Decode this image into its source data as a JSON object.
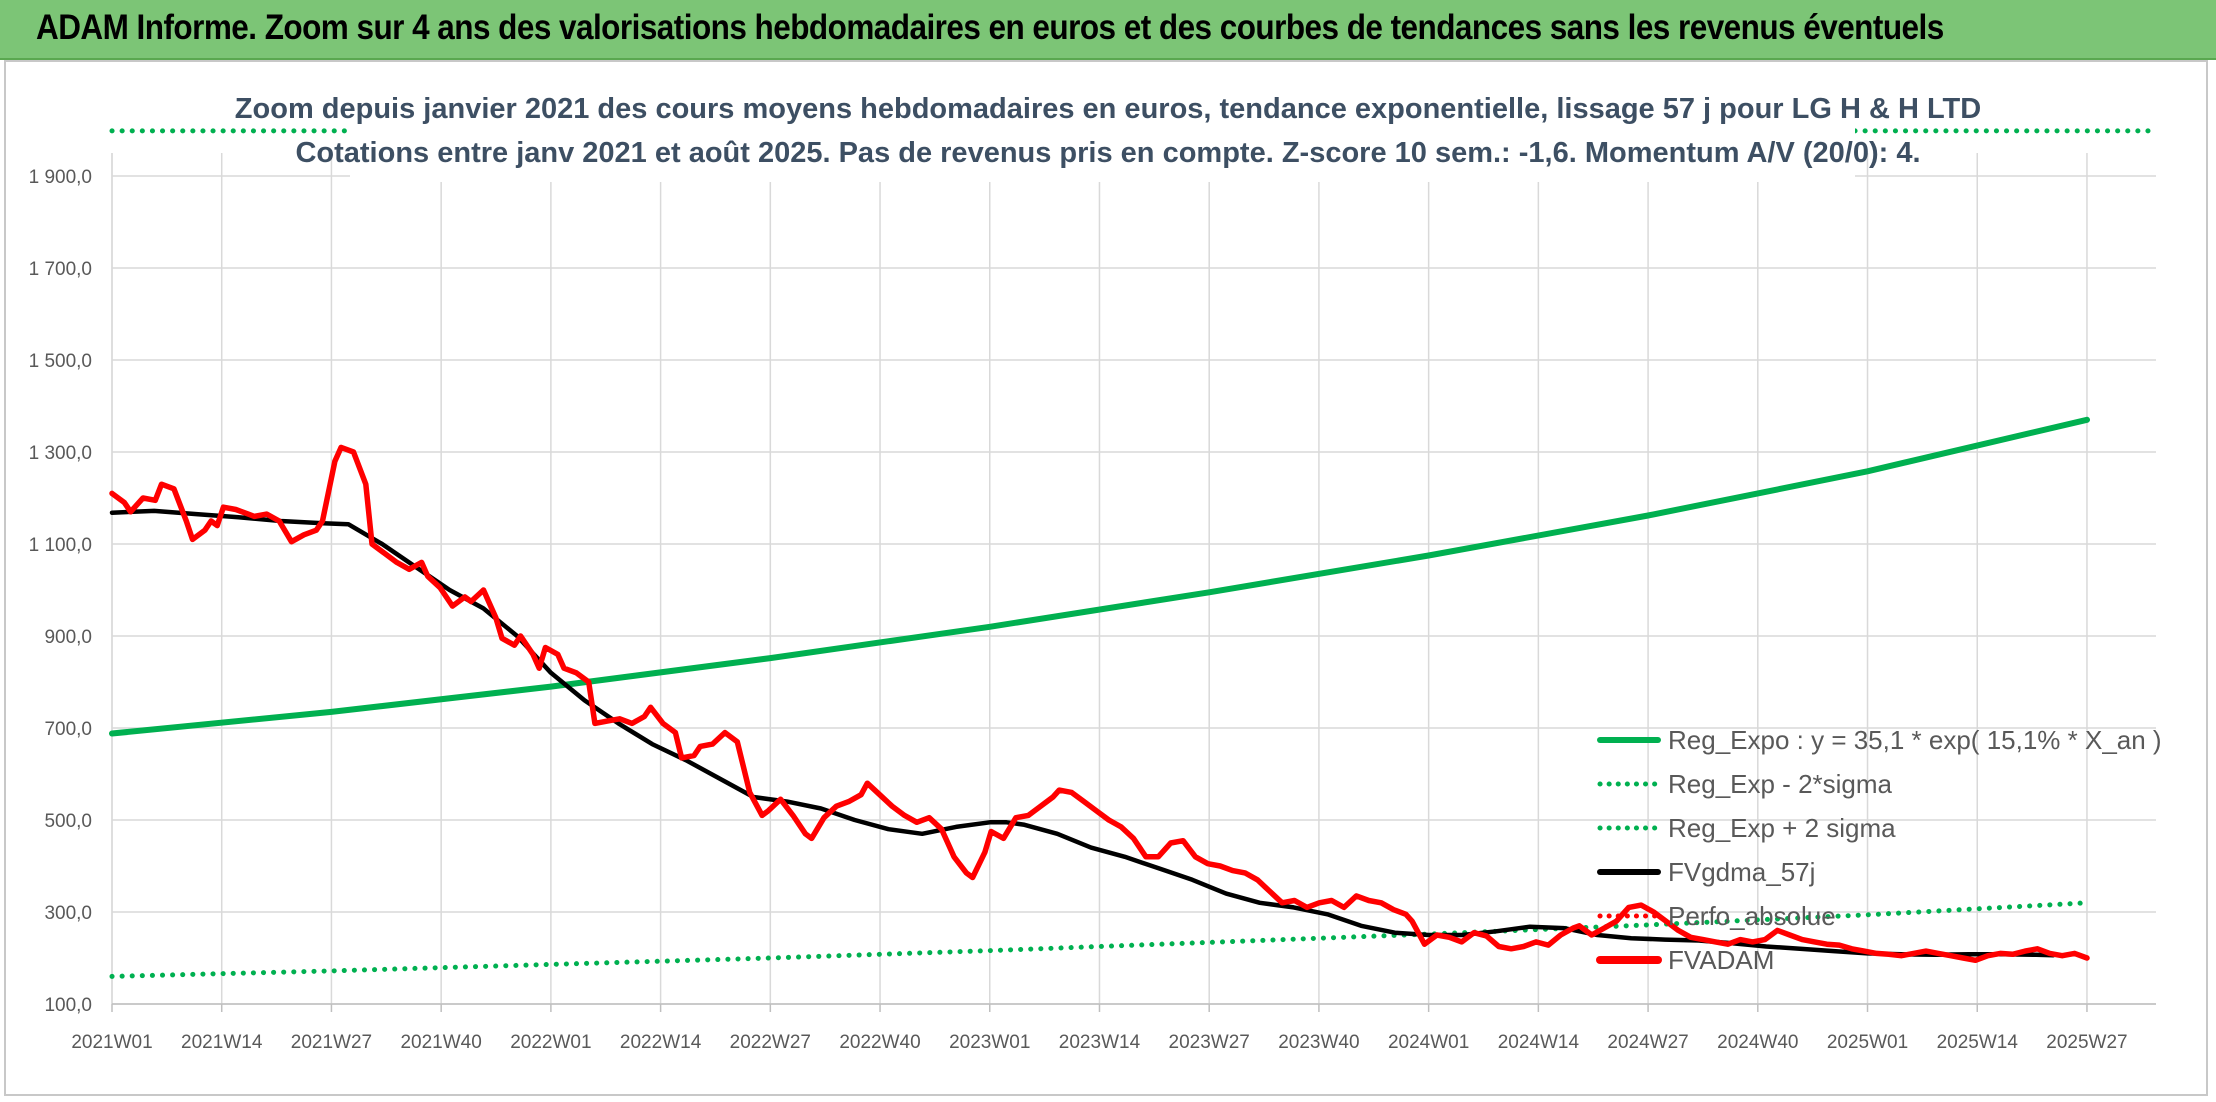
{
  "header": {
    "title": "ADAM Informe. Zoom sur 4 ans des valorisations hebdomadaires en euros et des courbes de tendances sans les revenus éventuels"
  },
  "chart_data": {
    "type": "line",
    "title": "Zoom depuis janvier 2021 des cours moyens hebdomadaires en euros, tendance exponentielle, lissage 57 j pour LG H & H LTD",
    "subtitle": "Cotations entre janv 2021 et août 2025. Pas de revenus pris en compte. Z-score 10 sem.: -1,6. Momentum A/V (20/0): 4.",
    "xlabel": "",
    "ylabel": "",
    "ylim": [
      100,
      1950
    ],
    "y_ticks": [
      "100,0",
      "300,0",
      "500,0",
      "700,0",
      "900,0",
      "1 100,0",
      "1 300,0",
      "1 500,0",
      "1 700,0",
      "1 900,0"
    ],
    "x_ticks": [
      "2021W01",
      "2021W14",
      "2021W27",
      "2021W40",
      "2022W01",
      "2022W14",
      "2022W27",
      "2022W40",
      "2023W01",
      "2023W14",
      "2023W27",
      "2023W40",
      "2024W01",
      "2024W14",
      "2024W27",
      "2024W40",
      "2025W01",
      "2025W14",
      "2025W27"
    ],
    "grid": true,
    "legend_position": "bottom-right",
    "colors": {
      "reg_expo": "#00b050",
      "reg_minus": "#00b050",
      "reg_plus": "#00b050",
      "fvgdma": "#000000",
      "perfo": "#ff0000",
      "fvadam": "#ff0000"
    },
    "series": [
      {
        "name": "Reg_Expo : y = 35,1 * exp( 15,1% *  X_an )",
        "style": "solid",
        "points": [
          [
            0,
            688
          ],
          [
            26,
            735
          ],
          [
            52,
            790
          ],
          [
            78,
            852
          ],
          [
            104,
            920
          ],
          [
            130,
            995
          ],
          [
            156,
            1075
          ],
          [
            182,
            1162
          ],
          [
            208,
            1258
          ],
          [
            234,
            1370
          ]
        ]
      },
      {
        "name": "Reg_Exp - 2*sigma",
        "style": "dotted",
        "points": [
          [
            0,
            160
          ],
          [
            26,
            172
          ],
          [
            52,
            186
          ],
          [
            78,
            200
          ],
          [
            104,
            216
          ],
          [
            130,
            234
          ],
          [
            156,
            252
          ],
          [
            182,
            272
          ],
          [
            208,
            294
          ],
          [
            234,
            320
          ]
        ]
      },
      {
        "name": "Reg_Exp + 2 sigma",
        "style": "dotted",
        "points": [
          [
            0,
            1998
          ],
          [
            234,
            1998
          ]
        ]
      },
      {
        "name": "FVgdma_57j",
        "style": "solid",
        "points": [
          [
            0,
            1168
          ],
          [
            5,
            1172
          ],
          [
            10,
            1165
          ],
          [
            15,
            1158
          ],
          [
            20,
            1150
          ],
          [
            25,
            1145
          ],
          [
            28,
            1143
          ],
          [
            32,
            1100
          ],
          [
            36,
            1050
          ],
          [
            40,
            1000
          ],
          [
            44,
            960
          ],
          [
            48,
            900
          ],
          [
            52,
            820
          ],
          [
            56,
            760
          ],
          [
            60,
            710
          ],
          [
            64,
            665
          ],
          [
            68,
            630
          ],
          [
            72,
            590
          ],
          [
            76,
            550
          ],
          [
            80,
            540
          ],
          [
            84,
            525
          ],
          [
            88,
            500
          ],
          [
            92,
            480
          ],
          [
            96,
            470
          ],
          [
            100,
            485
          ],
          [
            104,
            495
          ],
          [
            106,
            495
          ],
          [
            108,
            490
          ],
          [
            112,
            470
          ],
          [
            116,
            440
          ],
          [
            120,
            420
          ],
          [
            124,
            395
          ],
          [
            128,
            370
          ],
          [
            132,
            340
          ],
          [
            136,
            320
          ],
          [
            140,
            310
          ],
          [
            144,
            295
          ],
          [
            148,
            270
          ],
          [
            152,
            255
          ],
          [
            156,
            250
          ],
          [
            160,
            250
          ],
          [
            164,
            258
          ],
          [
            168,
            268
          ],
          [
            172,
            265
          ],
          [
            176,
            250
          ],
          [
            180,
            243
          ],
          [
            184,
            240
          ],
          [
            188,
            238
          ],
          [
            192,
            232
          ],
          [
            196,
            225
          ],
          [
            200,
            220
          ],
          [
            204,
            215
          ],
          [
            208,
            210
          ],
          [
            212,
            208
          ],
          [
            216,
            207
          ],
          [
            220,
            208
          ],
          [
            224,
            208
          ],
          [
            228,
            207
          ],
          [
            230,
            206
          ]
        ]
      },
      {
        "name": "Perfo_absolue",
        "style": "dotted",
        "points": []
      },
      {
        "name": "FVADAM",
        "style": "solid",
        "points": [
          [
            0,
            1210
          ],
          [
            2,
            1190
          ],
          [
            3,
            1170
          ],
          [
            5,
            1200
          ],
          [
            7,
            1195
          ],
          [
            8,
            1230
          ],
          [
            10,
            1220
          ],
          [
            12,
            1150
          ],
          [
            13,
            1110
          ],
          [
            15,
            1130
          ],
          [
            16,
            1150
          ],
          [
            17,
            1140
          ],
          [
            18,
            1180
          ],
          [
            20,
            1175
          ],
          [
            22,
            1165
          ],
          [
            23,
            1160
          ],
          [
            25,
            1165
          ],
          [
            27,
            1150
          ],
          [
            29,
            1105
          ],
          [
            31,
            1120
          ],
          [
            33,
            1130
          ],
          [
            34,
            1150
          ],
          [
            36,
            1280
          ],
          [
            37,
            1310
          ],
          [
            39,
            1300
          ],
          [
            41,
            1230
          ],
          [
            42,
            1100
          ],
          [
            44,
            1080
          ],
          [
            46,
            1060
          ],
          [
            48,
            1045
          ],
          [
            50,
            1060
          ],
          [
            51,
            1030
          ],
          [
            53,
            1005
          ],
          [
            55,
            965
          ],
          [
            57,
            985
          ],
          [
            58,
            975
          ],
          [
            60,
            1000
          ],
          [
            62,
            940
          ],
          [
            63,
            895
          ],
          [
            65,
            880
          ],
          [
            66,
            900
          ],
          [
            68,
            860
          ],
          [
            69,
            830
          ],
          [
            70,
            875
          ],
          [
            72,
            860
          ],
          [
            73,
            830
          ],
          [
            75,
            820
          ],
          [
            77,
            800
          ],
          [
            78,
            710
          ],
          [
            80,
            715
          ],
          [
            82,
            720
          ],
          [
            84,
            710
          ],
          [
            86,
            725
          ],
          [
            87,
            745
          ],
          [
            89,
            710
          ],
          [
            91,
            690
          ],
          [
            92,
            635
          ],
          [
            94,
            640
          ],
          [
            95,
            660
          ],
          [
            97,
            665
          ],
          [
            99,
            690
          ],
          [
            101,
            670
          ],
          [
            103,
            560
          ],
          [
            105,
            510
          ],
          [
            106,
            520
          ],
          [
            108,
            545
          ],
          [
            110,
            510
          ],
          [
            112,
            470
          ],
          [
            113,
            460
          ],
          [
            115,
            505
          ],
          [
            117,
            530
          ],
          [
            119,
            540
          ],
          [
            121,
            555
          ],
          [
            122,
            580
          ],
          [
            124,
            555
          ],
          [
            126,
            530
          ],
          [
            128,
            510
          ],
          [
            130,
            495
          ],
          [
            132,
            505
          ],
          [
            134,
            480
          ],
          [
            136,
            420
          ],
          [
            138,
            385
          ],
          [
            139,
            375
          ],
          [
            141,
            430
          ],
          [
            142,
            475
          ],
          [
            144,
            460
          ],
          [
            146,
            505
          ],
          [
            148,
            510
          ],
          [
            150,
            530
          ],
          [
            152,
            550
          ],
          [
            153,
            565
          ],
          [
            155,
            560
          ],
          [
            157,
            540
          ],
          [
            159,
            520
          ],
          [
            161,
            500
          ],
          [
            163,
            485
          ],
          [
            165,
            460
          ],
          [
            167,
            420
          ],
          [
            169,
            420
          ],
          [
            171,
            450
          ],
          [
            173,
            455
          ],
          [
            175,
            420
          ],
          [
            177,
            405
          ],
          [
            179,
            400
          ],
          [
            181,
            390
          ],
          [
            183,
            385
          ],
          [
            185,
            370
          ],
          [
            187,
            345
          ],
          [
            189,
            320
          ],
          [
            191,
            325
          ],
          [
            193,
            310
          ],
          [
            195,
            320
          ],
          [
            197,
            325
          ],
          [
            199,
            310
          ],
          [
            201,
            335
          ],
          [
            203,
            325
          ],
          [
            205,
            320
          ],
          [
            207,
            305
          ],
          [
            209,
            295
          ],
          [
            210,
            280
          ],
          [
            212,
            230
          ],
          [
            214,
            250
          ],
          [
            216,
            245
          ],
          [
            218,
            235
          ],
          [
            220,
            255
          ],
          [
            222,
            248
          ],
          [
            224,
            225
          ],
          [
            226,
            220
          ],
          [
            228,
            225
          ],
          [
            230,
            235
          ],
          [
            232,
            228
          ],
          [
            234,
            250
          ],
          [
            236,
            265
          ],
          [
            237,
            270
          ],
          [
            239,
            250
          ],
          [
            241,
            265
          ],
          [
            243,
            280
          ],
          [
            245,
            310
          ],
          [
            247,
            315
          ],
          [
            249,
            300
          ],
          [
            251,
            280
          ],
          [
            253,
            260
          ],
          [
            255,
            245
          ],
          [
            257,
            240
          ],
          [
            259,
            235
          ],
          [
            261,
            230
          ],
          [
            263,
            240
          ],
          [
            265,
            235
          ],
          [
            267,
            240
          ],
          [
            269,
            260
          ],
          [
            271,
            250
          ],
          [
            273,
            240
          ],
          [
            275,
            235
          ],
          [
            277,
            230
          ],
          [
            279,
            228
          ],
          [
            281,
            220
          ],
          [
            283,
            215
          ],
          [
            285,
            210
          ],
          [
            287,
            208
          ],
          [
            289,
            205
          ],
          [
            291,
            210
          ],
          [
            293,
            215
          ],
          [
            295,
            210
          ],
          [
            297,
            205
          ],
          [
            299,
            200
          ],
          [
            301,
            195
          ],
          [
            303,
            205
          ],
          [
            305,
            210
          ],
          [
            307,
            208
          ],
          [
            309,
            215
          ],
          [
            311,
            220
          ],
          [
            313,
            210
          ],
          [
            315,
            205
          ],
          [
            317,
            210
          ],
          [
            319,
            200
          ]
        ]
      }
    ]
  }
}
